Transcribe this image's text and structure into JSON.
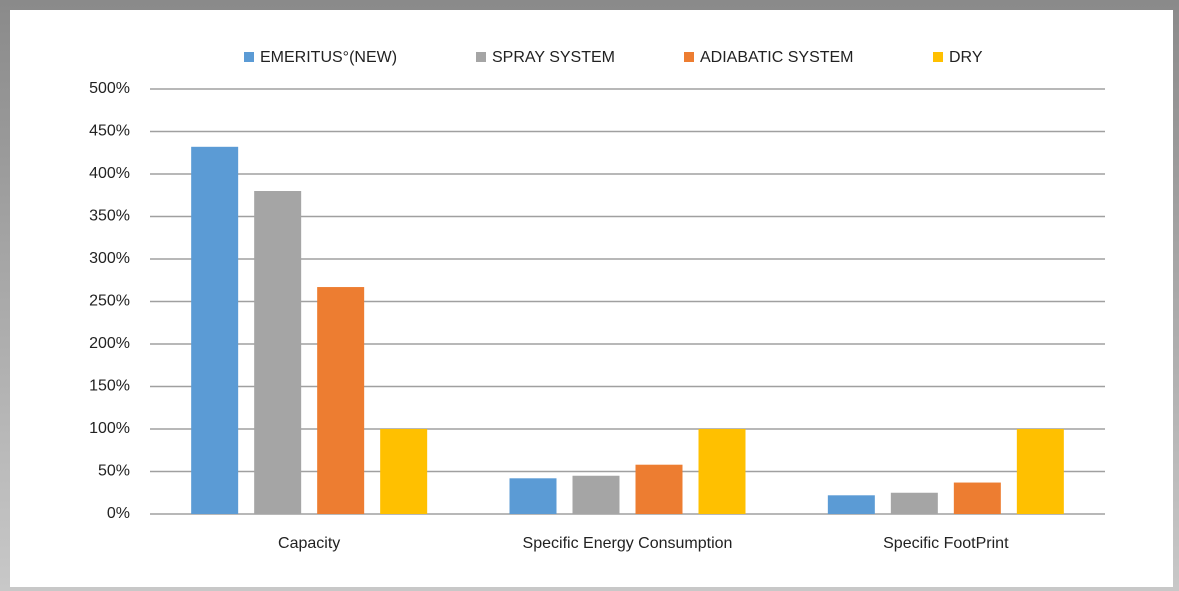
{
  "chart_data": {
    "type": "bar",
    "categories": [
      "Capacity",
      "Specific Energy Consumption",
      "Specific FootPrint"
    ],
    "series": [
      {
        "name": "EMERITUS°(NEW)",
        "color": "#5b9bd5",
        "values": [
          432,
          42,
          22
        ]
      },
      {
        "name": "SPRAY SYSTEM",
        "color": "#a5a5a5",
        "values": [
          380,
          45,
          25
        ]
      },
      {
        "name": "ADIABATIC SYSTEM",
        "color": "#ed7d31",
        "values": [
          267,
          58,
          37
        ]
      },
      {
        "name": "DRY",
        "color": "#ffc000",
        "values": [
          100,
          100,
          100
        ]
      }
    ],
    "ylim": [
      0,
      500
    ],
    "yticks": [
      {
        "value": 0,
        "label": "0%"
      },
      {
        "value": 50,
        "label": "50%"
      },
      {
        "value": 100,
        "label": "100%"
      },
      {
        "value": 150,
        "label": "150%"
      },
      {
        "value": 200,
        "label": "200%"
      },
      {
        "value": 250,
        "label": "250%"
      },
      {
        "value": 300,
        "label": "300%"
      },
      {
        "value": 350,
        "label": "350%"
      },
      {
        "value": 400,
        "label": "400%"
      },
      {
        "value": 450,
        "label": "450%"
      },
      {
        "value": 500,
        "label": "500%"
      }
    ],
    "grid": true,
    "legend": "top"
  }
}
